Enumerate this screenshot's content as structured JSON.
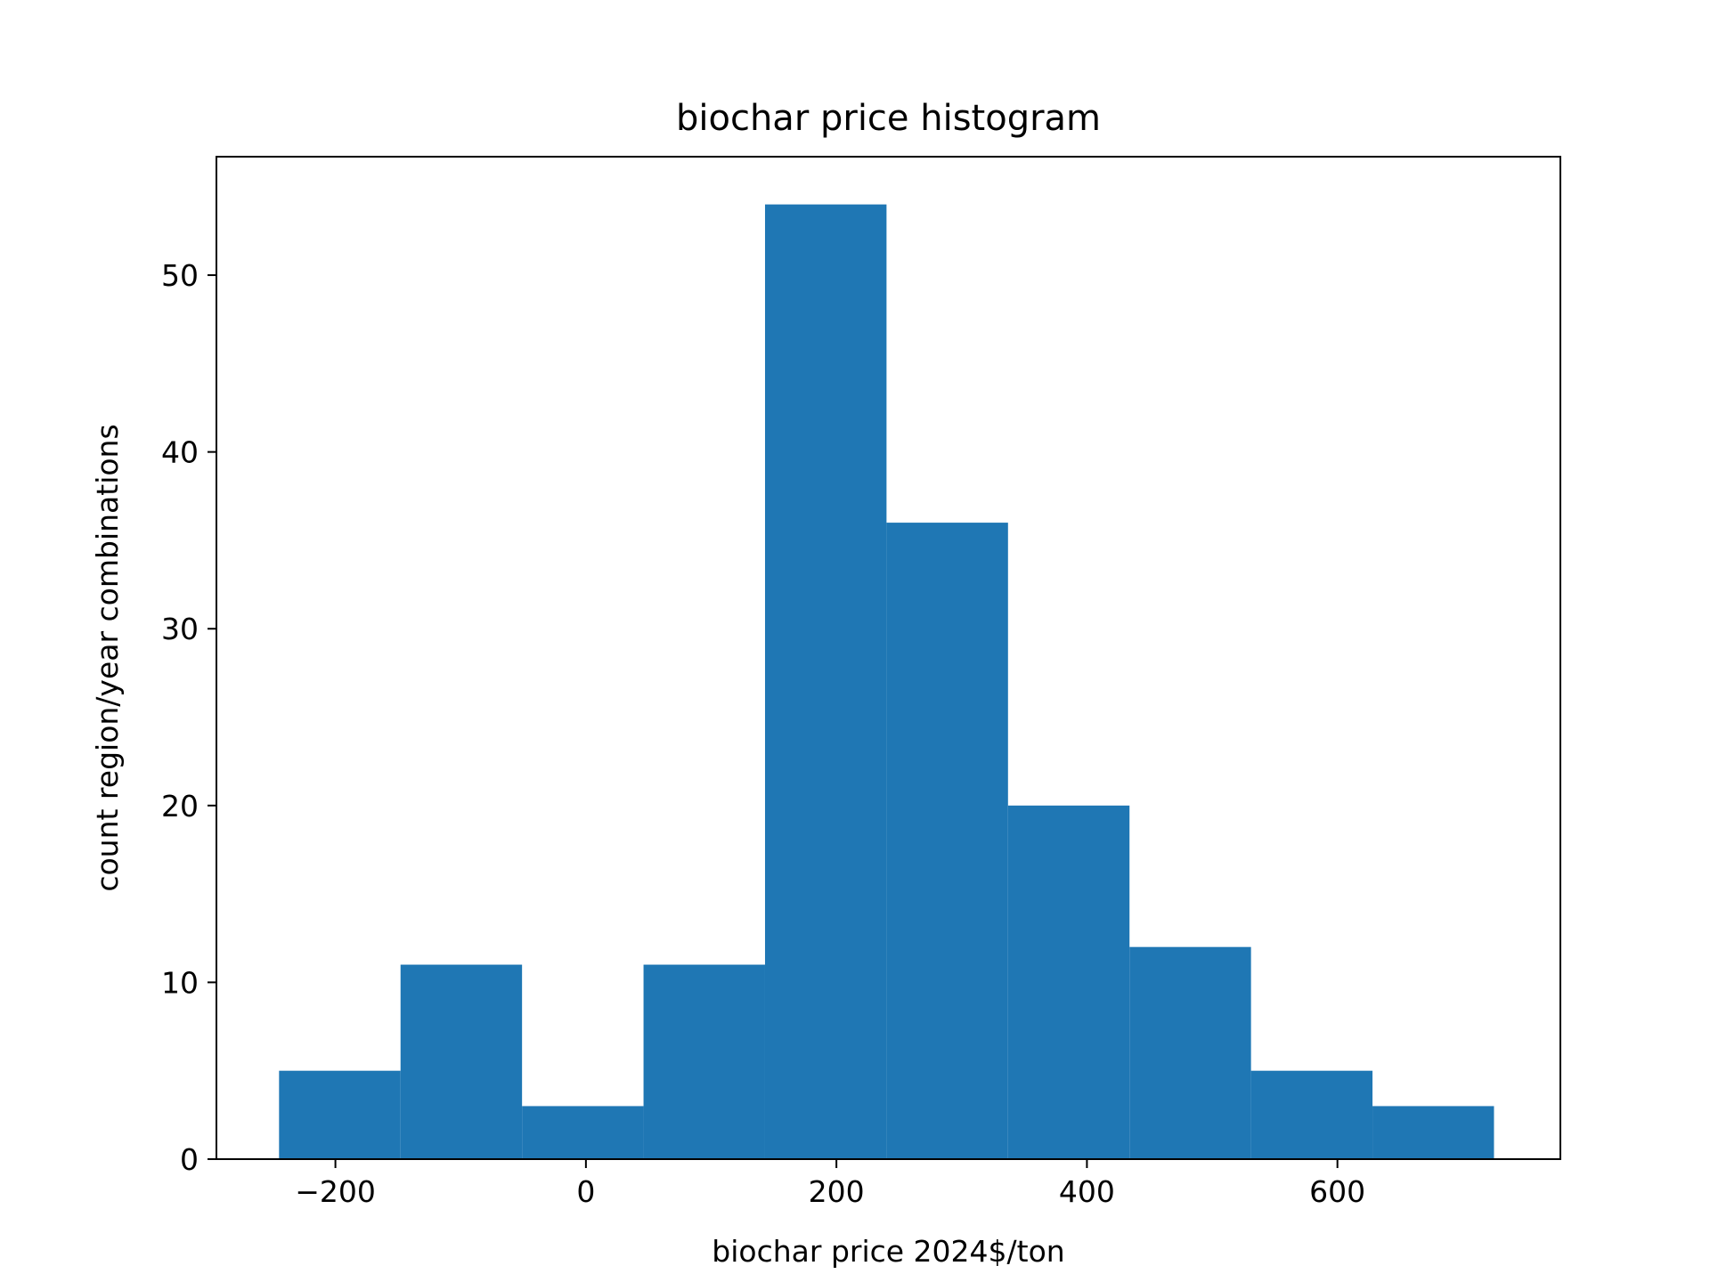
{
  "chart_data": {
    "type": "bar",
    "title": "biochar price histogram",
    "xlabel": "biochar price 2024$/ton",
    "ylabel": "count region/year combinations",
    "bin_edges": [
      -245,
      -148,
      -51,
      46,
      143,
      240,
      337,
      434,
      531,
      628,
      725
    ],
    "values": [
      5,
      11,
      3,
      11,
      54,
      36,
      20,
      12,
      5,
      3
    ],
    "xlim": [
      -295,
      778
    ],
    "ylim": [
      0,
      56.7
    ],
    "xticks": [
      {
        "value": -200,
        "label": "−200"
      },
      {
        "value": 0,
        "label": "0"
      },
      {
        "value": 200,
        "label": "200"
      },
      {
        "value": 400,
        "label": "400"
      },
      {
        "value": 600,
        "label": "600"
      }
    ],
    "yticks": [
      {
        "value": 0,
        "label": "0"
      },
      {
        "value": 10,
        "label": "10"
      },
      {
        "value": 20,
        "label": "20"
      },
      {
        "value": 30,
        "label": "30"
      },
      {
        "value": 40,
        "label": "40"
      },
      {
        "value": 50,
        "label": "50"
      }
    ],
    "bar_color": "#1f77b4",
    "grid": false,
    "legend": "none"
  }
}
